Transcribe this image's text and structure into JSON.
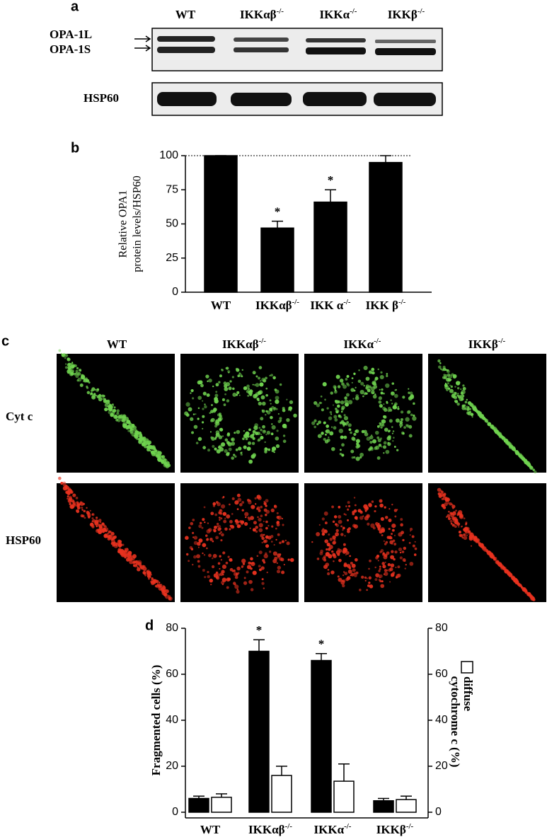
{
  "panel_a": {
    "label": "a",
    "columns": [
      "WT",
      "IKKαβ-/-",
      "IKKα-/-",
      "IKKβ-/-"
    ],
    "bands": [
      "OPA-1L",
      "OPA-1S"
    ],
    "loading": "HSP60"
  },
  "panel_c": {
    "label": "c",
    "columns": [
      "WT",
      "IKKαβ-/-",
      "IKKα-/-",
      "IKKβ-/-"
    ],
    "rows": [
      "Cyt c",
      "HSP60"
    ]
  },
  "chart_data": [
    {
      "type": "bar",
      "panel_label": "b",
      "ylabel": [
        "Relative OPA1",
        "protein levels/HSP60"
      ],
      "categories": [
        "WT",
        "IKKαβ-/-",
        "IKK α-/-",
        "IKK β-/-"
      ],
      "series": [
        {
          "color": "#000000",
          "values": [
            100,
            47,
            66,
            95
          ],
          "errors": [
            0,
            5,
            9,
            5
          ]
        }
      ],
      "significance_marks": [
        null,
        "*",
        "*",
        null
      ],
      "hline": 100,
      "ylim": [
        0,
        100
      ],
      "yticks": [
        0,
        25,
        50,
        75,
        100
      ]
    },
    {
      "type": "bar",
      "panel_label": "d",
      "ylabel": "Fragmented cells (%)",
      "y2label": "cytochrome c (%)",
      "categories": [
        "WT",
        "IKKαβ-/-",
        "IKKα-/-",
        "IKKβ-/-"
      ],
      "series": [
        {
          "color": "#000000",
          "values": [
            6,
            70,
            66,
            5
          ],
          "errors": [
            1,
            5,
            3,
            1
          ]
        },
        {
          "name": "diffuse",
          "color": "#ffffff",
          "axis": "y2",
          "values": [
            6.5,
            16,
            13.5,
            5.5
          ],
          "errors": [
            1.5,
            4,
            7.5,
            1.5
          ]
        }
      ],
      "significance_marks": [
        null,
        "*",
        "*",
        null
      ],
      "ylim": [
        0,
        80
      ],
      "yticks": [
        0,
        20,
        40,
        60,
        80
      ],
      "y2lim": [
        0,
        80
      ],
      "y2ticks": [
        0,
        20,
        40,
        60,
        80
      ]
    }
  ]
}
